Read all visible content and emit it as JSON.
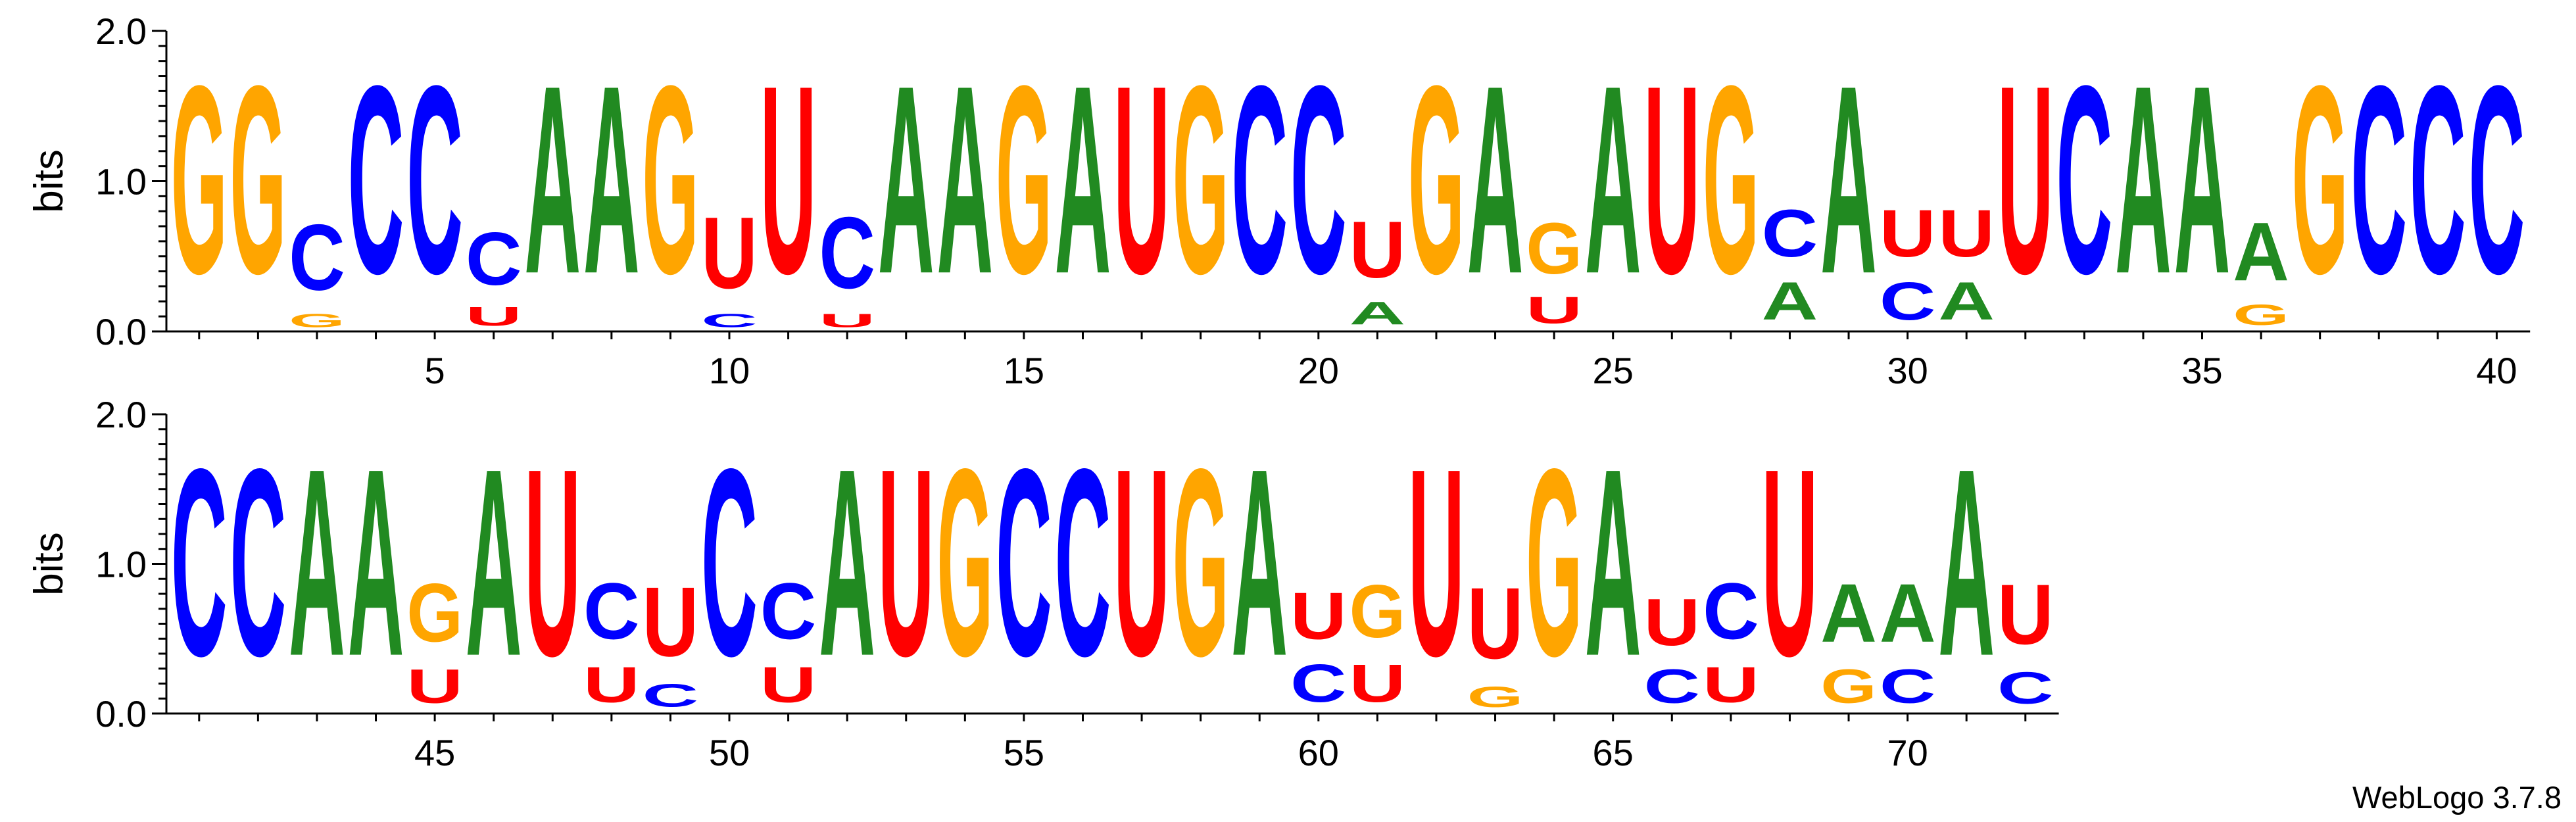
{
  "chart_data": {
    "type": "sequence-logo",
    "ylabel": "bits",
    "ylim": [
      0,
      2.0
    ],
    "y_ticks": [
      "0.0",
      "1.0",
      "2.0"
    ],
    "colors": {
      "A": "#218a21",
      "C": "#0000ff",
      "G": "#ffa500",
      "U": "#ff0000"
    },
    "rows": [
      {
        "start": 1,
        "end": 40,
        "x_ticks": [
          "5",
          "10",
          "15",
          "20",
          "25",
          "30",
          "35",
          "40"
        ],
        "columns": [
          [
            {
              "l": "G",
              "h": 2.0
            }
          ],
          [
            {
              "l": "G",
              "h": 2.0
            }
          ],
          [
            {
              "l": "G",
              "h": 0.14
            },
            {
              "l": "C",
              "h": 0.7
            }
          ],
          [
            {
              "l": "C",
              "h": 2.0
            }
          ],
          [
            {
              "l": "C",
              "h": 2.0
            }
          ],
          [
            {
              "l": "U",
              "h": 0.2
            },
            {
              "l": "C",
              "h": 0.56
            }
          ],
          [
            {
              "l": "A",
              "h": 2.0
            }
          ],
          [
            {
              "l": "A",
              "h": 2.0
            }
          ],
          [
            {
              "l": "G",
              "h": 2.0
            }
          ],
          [
            {
              "l": "C",
              "h": 0.14
            },
            {
              "l": "U",
              "h": 0.76
            }
          ],
          [
            {
              "l": "U",
              "h": 2.0
            }
          ],
          [
            {
              "l": "U",
              "h": 0.14
            },
            {
              "l": "C",
              "h": 0.76
            }
          ],
          [
            {
              "l": "A",
              "h": 2.0
            }
          ],
          [
            {
              "l": "A",
              "h": 2.0
            }
          ],
          [
            {
              "l": "G",
              "h": 2.0
            }
          ],
          [
            {
              "l": "A",
              "h": 2.0
            }
          ],
          [
            {
              "l": "U",
              "h": 2.0
            }
          ],
          [
            {
              "l": "G",
              "h": 2.0
            }
          ],
          [
            {
              "l": "C",
              "h": 2.0
            }
          ],
          [
            {
              "l": "C",
              "h": 2.0
            }
          ],
          [
            {
              "l": "A",
              "h": 0.24
            },
            {
              "l": "U",
              "h": 0.6
            }
          ],
          [
            {
              "l": "G",
              "h": 2.0
            }
          ],
          [
            {
              "l": "A",
              "h": 2.0
            }
          ],
          [
            {
              "l": "U",
              "h": 0.28
            },
            {
              "l": "G",
              "h": 0.54
            }
          ],
          [
            {
              "l": "A",
              "h": 2.0
            }
          ],
          [
            {
              "l": "U",
              "h": 2.0
            }
          ],
          [
            {
              "l": "G",
              "h": 2.0
            }
          ],
          [
            {
              "l": "A",
              "h": 0.4
            },
            {
              "l": "C",
              "h": 0.5
            }
          ],
          [
            {
              "l": "A",
              "h": 2.0
            }
          ],
          [
            {
              "l": "C",
              "h": 0.4
            },
            {
              "l": "U",
              "h": 0.5
            }
          ],
          [
            {
              "l": "A",
              "h": 0.4
            },
            {
              "l": "U",
              "h": 0.5
            }
          ],
          [
            {
              "l": "U",
              "h": 2.0
            }
          ],
          [
            {
              "l": "C",
              "h": 2.0
            }
          ],
          [
            {
              "l": "A",
              "h": 2.0
            }
          ],
          [
            {
              "l": "A",
              "h": 2.0
            }
          ],
          [
            {
              "l": "G",
              "h": 0.22
            },
            {
              "l": "A",
              "h": 0.62
            }
          ],
          [
            {
              "l": "G",
              "h": 2.0
            }
          ],
          [
            {
              "l": "C",
              "h": 2.0
            }
          ],
          [
            {
              "l": "C",
              "h": 2.0
            }
          ],
          [
            {
              "l": "C",
              "h": 2.0
            }
          ]
        ]
      },
      {
        "start": 41,
        "end": 72,
        "x_ticks": [
          "45",
          "50",
          "55",
          "60",
          "65",
          "70"
        ],
        "columns": [
          [
            {
              "l": "C",
              "h": 2.0
            }
          ],
          [
            {
              "l": "C",
              "h": 2.0
            }
          ],
          [
            {
              "l": "A",
              "h": 2.0
            }
          ],
          [
            {
              "l": "A",
              "h": 2.0
            }
          ],
          [
            {
              "l": "U",
              "h": 0.36
            },
            {
              "l": "G",
              "h": 0.62
            }
          ],
          [
            {
              "l": "A",
              "h": 2.0
            }
          ],
          [
            {
              "l": "U",
              "h": 2.0
            }
          ],
          [
            {
              "l": "U",
              "h": 0.38
            },
            {
              "l": "C",
              "h": 0.6
            }
          ],
          [
            {
              "l": "C",
              "h": 0.24
            },
            {
              "l": "U",
              "h": 0.74
            }
          ],
          [
            {
              "l": "C",
              "h": 2.0
            }
          ],
          [
            {
              "l": "U",
              "h": 0.38
            },
            {
              "l": "C",
              "h": 0.6
            }
          ],
          [
            {
              "l": "A",
              "h": 2.0
            }
          ],
          [
            {
              "l": "U",
              "h": 2.0
            }
          ],
          [
            {
              "l": "G",
              "h": 2.0
            }
          ],
          [
            {
              "l": "C",
              "h": 2.0
            }
          ],
          [
            {
              "l": "C",
              "h": 2.0
            }
          ],
          [
            {
              "l": "U",
              "h": 2.0
            }
          ],
          [
            {
              "l": "G",
              "h": 2.0
            }
          ],
          [
            {
              "l": "A",
              "h": 2.0
            }
          ],
          [
            {
              "l": "C",
              "h": 0.4
            },
            {
              "l": "U",
              "h": 0.5
            }
          ],
          [
            {
              "l": "U",
              "h": 0.4
            },
            {
              "l": "G",
              "h": 0.56
            }
          ],
          [
            {
              "l": "U",
              "h": 2.0
            }
          ],
          [
            {
              "l": "G",
              "h": 0.22
            },
            {
              "l": "U",
              "h": 0.76
            }
          ],
          [
            {
              "l": "G",
              "h": 2.0
            }
          ],
          [
            {
              "l": "A",
              "h": 2.0
            }
          ],
          [
            {
              "l": "C",
              "h": 0.36
            },
            {
              "l": "U",
              "h": 0.5
            }
          ],
          [
            {
              "l": "U",
              "h": 0.38
            },
            {
              "l": "C",
              "h": 0.6
            }
          ],
          [
            {
              "l": "U",
              "h": 2.0
            }
          ],
          [
            {
              "l": "G",
              "h": 0.36
            },
            {
              "l": "A",
              "h": 0.62
            }
          ],
          [
            {
              "l": "C",
              "h": 0.36
            },
            {
              "l": "A",
              "h": 0.62
            }
          ],
          [
            {
              "l": "A",
              "h": 2.0
            }
          ],
          [
            {
              "l": "C",
              "h": 0.34
            },
            {
              "l": "U",
              "h": 0.64
            }
          ]
        ]
      }
    ]
  },
  "footer": {
    "credit": "WebLogo 3.7.8"
  }
}
